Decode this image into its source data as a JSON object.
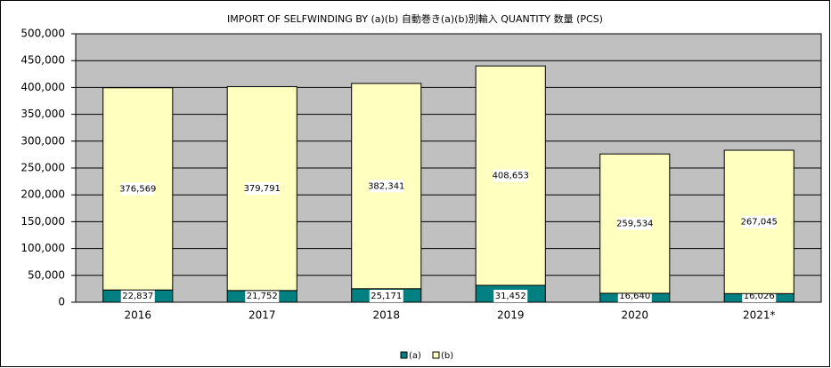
{
  "chart_data": {
    "type": "bar",
    "stacked": true,
    "title": "IMPORT OF SELFWINDING BY (a)(b)  自動巻き(a)(b)別輸入  QUANTITY 数量 (PCS)",
    "categories": [
      "2016",
      "2017",
      "2018",
      "2019",
      "2020",
      "2021*"
    ],
    "series": [
      {
        "name": "(a)",
        "color": "#008080",
        "values": [
          22837,
          21752,
          25171,
          31452,
          16640,
          16026
        ],
        "value_labels": [
          "22,837",
          "21,752",
          "25,171",
          "31,452",
          "16,640",
          "16,026"
        ]
      },
      {
        "name": "(b)",
        "color": "#ffffc0",
        "values": [
          376569,
          379791,
          382341,
          408653,
          259534,
          267045
        ],
        "value_labels": [
          "376,569",
          "379,791",
          "382,341",
          "408,653",
          "259,534",
          "267,045"
        ]
      }
    ],
    "ylim": [
      0,
      500000
    ],
    "yticks": [
      0,
      {
        "value": 50000,
        "label": "50,000"
      },
      {
        "value": 100000,
        "label": "100,000"
      },
      {
        "value": 150000,
        "label": "150,000"
      },
      {
        "value": 200000,
        "label": "200,000"
      },
      {
        "value": 250000,
        "label": "250,000"
      },
      {
        "value": 300000,
        "label": "300,000"
      },
      {
        "value": 350000,
        "label": "350,000"
      },
      {
        "value": 400000,
        "label": "400,000"
      },
      {
        "value": 450000,
        "label": "450,000"
      },
      {
        "value": 500000,
        "label": "500,000"
      }
    ],
    "grid": true,
    "plot_background": "#c0c0c0",
    "legend": "bottom"
  }
}
